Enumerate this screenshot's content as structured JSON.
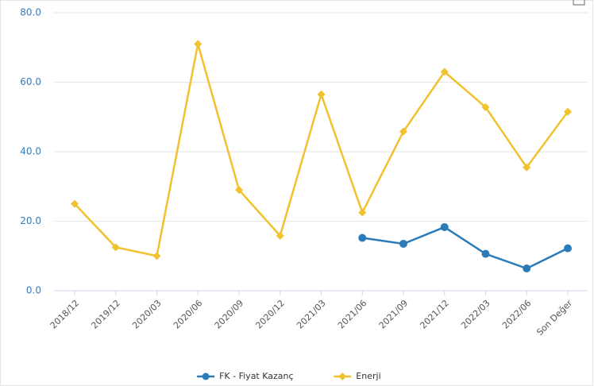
{
  "chart_data": {
    "type": "line",
    "categories": [
      "2018/12",
      "2019/12",
      "2020/03",
      "2020/06",
      "2020/09",
      "2020/12",
      "2021/03",
      "2021/06",
      "2021/09",
      "2021/12",
      "2022/03",
      "2022/06",
      "Son Değer"
    ],
    "series": [
      {
        "name": "FK - Fiyat Kazanç",
        "color": "#2b7bb9",
        "marker": "circle",
        "values": [
          null,
          null,
          null,
          null,
          null,
          null,
          null,
          15.2,
          13.5,
          18.3,
          10.6,
          6.4,
          12.2
        ]
      },
      {
        "name": "Enerji",
        "color": "#f2c12e",
        "marker": "diamond",
        "values": [
          25.0,
          12.5,
          10.0,
          71.0,
          29.0,
          15.8,
          56.5,
          22.5,
          45.8,
          63.0,
          52.8,
          35.5,
          51.5
        ]
      }
    ],
    "ylim": [
      0,
      80
    ],
    "yticks": [
      {
        "value": 0,
        "label": "0.0"
      },
      {
        "value": 20,
        "label": "20.0"
      },
      {
        "value": 40,
        "label": "40.0"
      },
      {
        "value": 60,
        "label": "60.0"
      },
      {
        "value": 80,
        "label": "80.0"
      }
    ],
    "grid": true,
    "legend": "bottom"
  }
}
